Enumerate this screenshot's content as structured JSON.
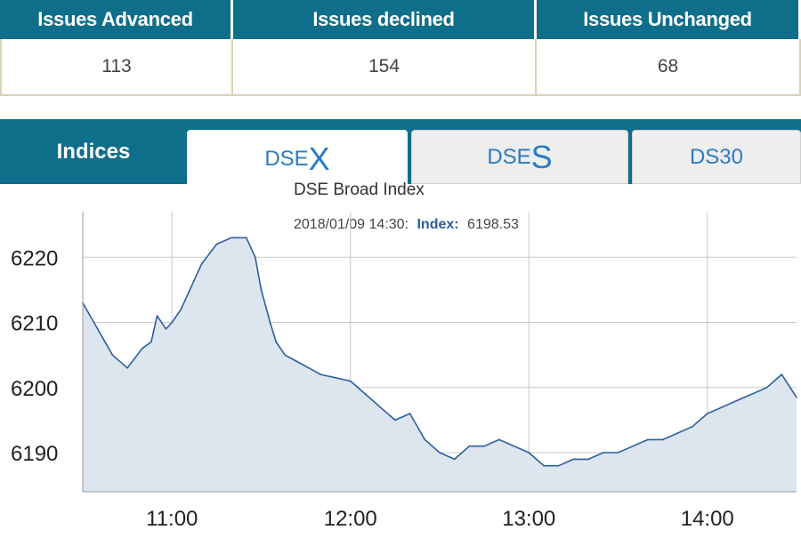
{
  "market_stats": {
    "headers": [
      "Issues Advanced",
      "Issues declined",
      "Issues Unchanged"
    ],
    "values": [
      "113",
      "154",
      "68"
    ]
  },
  "tabs": {
    "indices_label": "Indices",
    "items": [
      {
        "prefix": "DSE",
        "suffix": "X",
        "active": true
      },
      {
        "prefix": "DSE",
        "suffix": "S",
        "active": false
      },
      {
        "prefix": "DS30",
        "suffix": "",
        "active": false
      }
    ]
  },
  "colors": {
    "header_bg": "#0f6f8a",
    "line": "#2b5f9e",
    "area": "#dde5ef",
    "tab_text": "#2a7bc4"
  },
  "chart_data": {
    "type": "area",
    "title": "DSE Broad Index",
    "tooltip": {
      "time": "2018/01/09 14:30:",
      "label": "Index:",
      "value": "6198.53"
    },
    "xlabel": "",
    "ylabel": "",
    "x_ticks": [
      "11:00",
      "12:00",
      "13:00",
      "14:00"
    ],
    "y_ticks": [
      6190,
      6200,
      6210,
      6220
    ],
    "ylim": [
      6184,
      6227
    ],
    "xlim": [
      "10:30",
      "14:30"
    ],
    "grid": true,
    "series": [
      {
        "x": [
          "10:30",
          "10:35",
          "10:40",
          "10:45",
          "10:50",
          "10:53",
          "10:55",
          "10:58",
          "11:00",
          "11:03",
          "11:06",
          "11:10",
          "11:15",
          "11:20",
          "11:25",
          "11:28",
          "11:30",
          "11:33",
          "11:35",
          "11:38",
          "11:42",
          "11:46",
          "11:50",
          "11:55",
          "12:00",
          "12:05",
          "12:10",
          "12:15",
          "12:20",
          "12:25",
          "12:30",
          "12:35",
          "12:40",
          "12:45",
          "12:50",
          "12:55",
          "13:00",
          "13:05",
          "13:10",
          "13:15",
          "13:20",
          "13:25",
          "13:30",
          "13:35",
          "13:40",
          "13:45",
          "13:50",
          "13:55",
          "14:00",
          "14:05",
          "14:10",
          "14:15",
          "14:20",
          "14:25",
          "14:30"
        ],
        "y": [
          6213,
          6209,
          6205,
          6203,
          6206,
          6207,
          6211,
          6209,
          6210,
          6212,
          6215,
          6219,
          6222,
          6223,
          6223,
          6220,
          6215,
          6210,
          6207,
          6205,
          6204,
          6203,
          6202,
          6201.5,
          6201,
          6199,
          6197,
          6195,
          6196,
          6192,
          6190,
          6189,
          6191,
          6191,
          6192,
          6191,
          6190,
          6188,
          6188,
          6189,
          6189,
          6190,
          6190,
          6191,
          6192,
          6192,
          6193,
          6194,
          6196,
          6197,
          6198,
          6199,
          6200,
          6202,
          6198.5
        ]
      }
    ]
  }
}
